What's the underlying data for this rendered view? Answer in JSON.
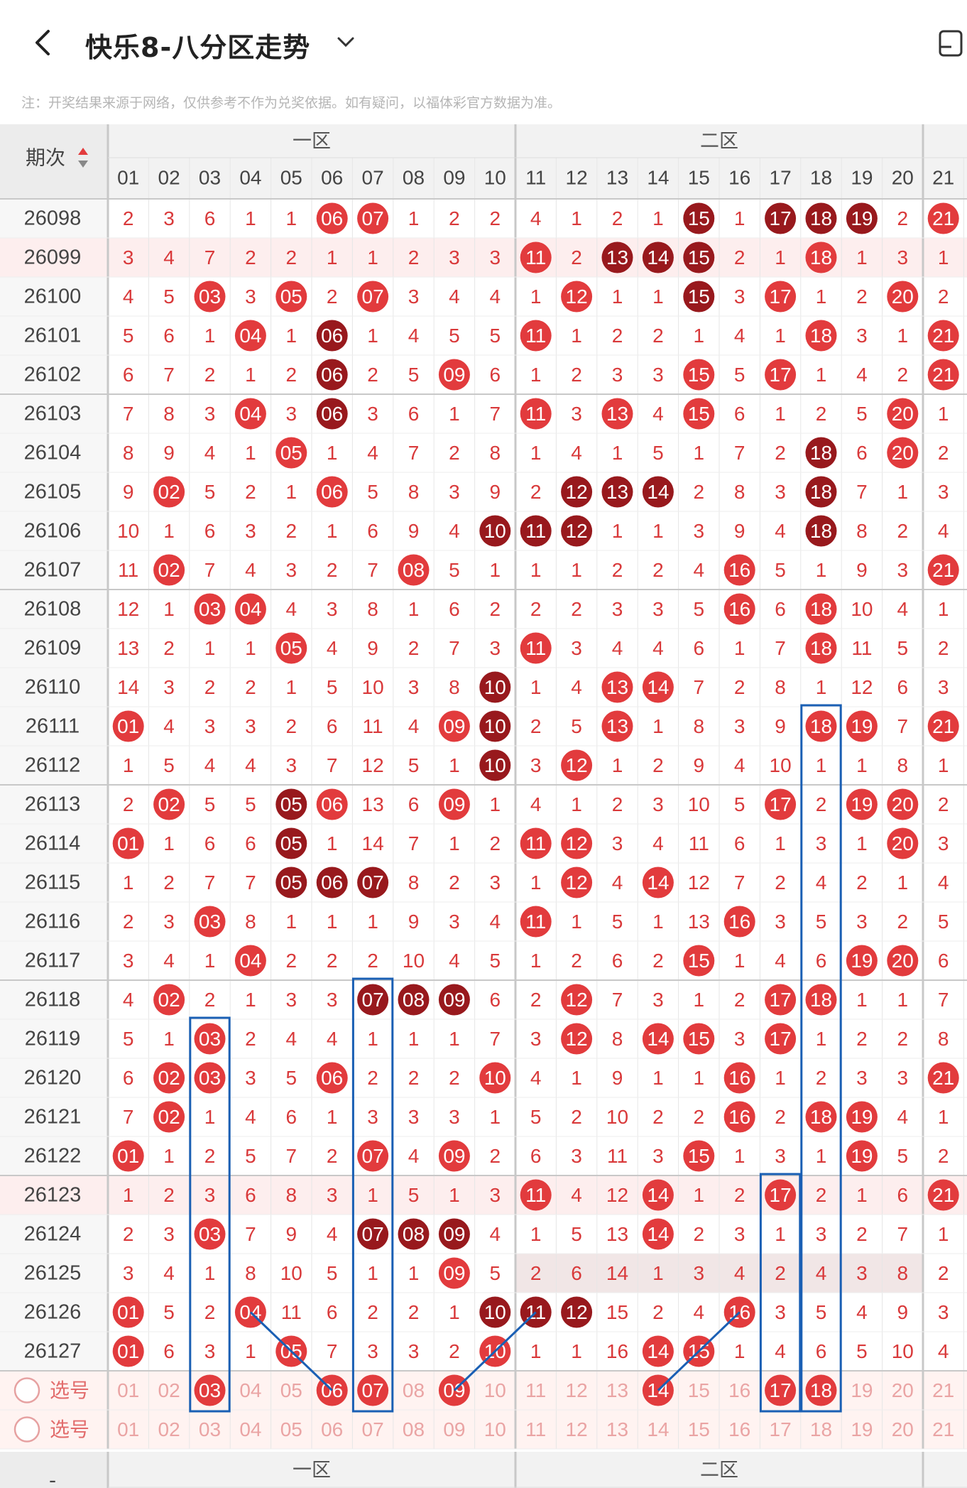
{
  "header": {
    "title": "快乐8-八分区走势",
    "back_icon": "chevron-left-icon",
    "dropdown_icon": "chevron-down-icon",
    "right_icon": "device-icon"
  },
  "note": "注：开奖结果来源于网络，仅供参考不作为兑奖依据。如有疑问，以福体彩官方数据为准。",
  "table": {
    "issue_header": "期次",
    "zones": [
      "一区",
      "二区"
    ],
    "columns": [
      "01",
      "02",
      "03",
      "04",
      "05",
      "06",
      "07",
      "08",
      "09",
      "10",
      "11",
      "12",
      "13",
      "14",
      "15",
      "16",
      "17",
      "18",
      "19",
      "20",
      "21"
    ],
    "pick_label": "选号",
    "colors": {
      "hit": "#e23b3d",
      "repeat": "#98191d",
      "count": "#d9393a",
      "frame": "#1a5fb4",
      "highlight_row": "#fdeeee",
      "pick_row": "#fff3f1"
    },
    "rows": [
      {
        "issue": "26098",
        "cells": [
          "2",
          "3",
          "6",
          "1",
          "1",
          "06*",
          "07*",
          "1",
          "2",
          "2",
          "4",
          "1",
          "2",
          "1",
          "15#",
          "1",
          "17#",
          "18#",
          "19#",
          "2",
          "21*"
        ]
      },
      {
        "issue": "26099",
        "cells": [
          "3",
          "4",
          "7",
          "2",
          "2",
          "1",
          "1",
          "2",
          "3",
          "3",
          "11*",
          "2",
          "13#",
          "14#",
          "15#",
          "2",
          "1",
          "18*",
          "1",
          "3",
          "1"
        ]
      },
      {
        "issue": "26100",
        "cells": [
          "4",
          "5",
          "03*",
          "3",
          "05*",
          "2",
          "07*",
          "3",
          "4",
          "4",
          "1",
          "12*",
          "1",
          "1",
          "15#",
          "3",
          "17*",
          "1",
          "2",
          "20*",
          "2"
        ]
      },
      {
        "issue": "26101",
        "cells": [
          "5",
          "6",
          "1",
          "04*",
          "1",
          "06#",
          "1",
          "4",
          "5",
          "5",
          "11*",
          "1",
          "2",
          "2",
          "1",
          "4",
          "1",
          "18*",
          "3",
          "1",
          "21*"
        ]
      },
      {
        "issue": "26102",
        "cells": [
          "6",
          "7",
          "2",
          "1",
          "2",
          "06#",
          "2",
          "5",
          "09*",
          "6",
          "1",
          "2",
          "3",
          "3",
          "15*",
          "5",
          "17*",
          "1",
          "4",
          "2",
          "21*"
        ]
      },
      {
        "issue": "26103",
        "cells": [
          "7",
          "8",
          "3",
          "04*",
          "3",
          "06#",
          "3",
          "6",
          "1",
          "7",
          "11*",
          "3",
          "13*",
          "4",
          "15*",
          "6",
          "1",
          "2",
          "5",
          "20*",
          "1"
        ]
      },
      {
        "issue": "26104",
        "cells": [
          "8",
          "9",
          "4",
          "1",
          "05*",
          "1",
          "4",
          "7",
          "2",
          "8",
          "1",
          "4",
          "1",
          "5",
          "1",
          "7",
          "2",
          "18#",
          "6",
          "20*",
          "2"
        ]
      },
      {
        "issue": "26105",
        "cells": [
          "9",
          "02*",
          "5",
          "2",
          "1",
          "06*",
          "5",
          "8",
          "3",
          "9",
          "2",
          "12#",
          "13#",
          "14#",
          "2",
          "8",
          "3",
          "18#",
          "7",
          "1",
          "3"
        ]
      },
      {
        "issue": "26106",
        "cells": [
          "10",
          "1",
          "6",
          "3",
          "2",
          "1",
          "6",
          "9",
          "4",
          "10#",
          "11#",
          "12#",
          "1",
          "1",
          "3",
          "9",
          "4",
          "18#",
          "8",
          "2",
          "4"
        ]
      },
      {
        "issue": "26107",
        "cells": [
          "11",
          "02*",
          "7",
          "4",
          "3",
          "2",
          "7",
          "08*",
          "5",
          "1",
          "1",
          "1",
          "2",
          "2",
          "4",
          "16*",
          "5",
          "1",
          "9",
          "3",
          "21*"
        ]
      },
      {
        "issue": "26108",
        "cells": [
          "12",
          "1",
          "03*",
          "04*",
          "4",
          "3",
          "8",
          "1",
          "6",
          "2",
          "2",
          "2",
          "3",
          "3",
          "5",
          "16*",
          "6",
          "18*",
          "10",
          "4",
          "1"
        ]
      },
      {
        "issue": "26109",
        "cells": [
          "13",
          "2",
          "1",
          "1",
          "05*",
          "4",
          "9",
          "2",
          "7",
          "3",
          "11*",
          "3",
          "4",
          "4",
          "6",
          "1",
          "7",
          "18*",
          "11",
          "5",
          "2"
        ]
      },
      {
        "issue": "26110",
        "cells": [
          "14",
          "3",
          "2",
          "2",
          "1",
          "5",
          "10",
          "3",
          "8",
          "10#",
          "1",
          "4",
          "13*",
          "14*",
          "7",
          "2",
          "8",
          "1",
          "12",
          "6",
          "3"
        ]
      },
      {
        "issue": "26111",
        "cells": [
          "01*",
          "4",
          "3",
          "3",
          "2",
          "6",
          "11",
          "4",
          "09*",
          "10#",
          "2",
          "5",
          "13*",
          "1",
          "8",
          "3",
          "9",
          "18*",
          "19*",
          "7",
          "21*"
        ]
      },
      {
        "issue": "26112",
        "cells": [
          "1",
          "5",
          "4",
          "4",
          "3",
          "7",
          "12",
          "5",
          "1",
          "10#",
          "3",
          "12*",
          "1",
          "2",
          "9",
          "4",
          "10",
          "1",
          "1",
          "8",
          "1"
        ]
      },
      {
        "issue": "26113",
        "cells": [
          "2",
          "02*",
          "5",
          "5",
          "05#",
          "06*",
          "13",
          "6",
          "09*",
          "1",
          "4",
          "1",
          "2",
          "3",
          "10",
          "5",
          "17*",
          "2",
          "19*",
          "20*",
          "2"
        ]
      },
      {
        "issue": "26114",
        "cells": [
          "01*",
          "1",
          "6",
          "6",
          "05#",
          "1",
          "14",
          "7",
          "1",
          "2",
          "11*",
          "12*",
          "3",
          "4",
          "11",
          "6",
          "1",
          "3",
          "1",
          "20*",
          "3"
        ]
      },
      {
        "issue": "26115",
        "cells": [
          "1",
          "2",
          "7",
          "7",
          "05#",
          "06#",
          "07#",
          "8",
          "2",
          "3",
          "1",
          "12*",
          "4",
          "14*",
          "12",
          "7",
          "2",
          "4",
          "2",
          "1",
          "4"
        ]
      },
      {
        "issue": "26116",
        "cells": [
          "2",
          "3",
          "03*",
          "8",
          "1",
          "1",
          "1",
          "9",
          "3",
          "4",
          "11*",
          "1",
          "5",
          "1",
          "13",
          "16*",
          "3",
          "5",
          "3",
          "2",
          "5"
        ]
      },
      {
        "issue": "26117",
        "cells": [
          "3",
          "4",
          "1",
          "04*",
          "2",
          "2",
          "2",
          "10",
          "4",
          "5",
          "1",
          "2",
          "6",
          "2",
          "15*",
          "1",
          "4",
          "6",
          "19*",
          "20*",
          "6"
        ]
      },
      {
        "issue": "26118",
        "cells": [
          "4",
          "02*",
          "2",
          "1",
          "3",
          "3",
          "07#",
          "08#",
          "09#",
          "6",
          "2",
          "12*",
          "7",
          "3",
          "1",
          "2",
          "17*",
          "18*",
          "1",
          "1",
          "7"
        ]
      },
      {
        "issue": "26119",
        "cells": [
          "5",
          "1",
          "03*",
          "2",
          "4",
          "4",
          "1",
          "1",
          "1",
          "7",
          "3",
          "12*",
          "8",
          "14*",
          "15*",
          "3",
          "17*",
          "1",
          "2",
          "2",
          "8"
        ]
      },
      {
        "issue": "26120",
        "cells": [
          "6",
          "02*",
          "03*",
          "3",
          "5",
          "06*",
          "2",
          "2",
          "2",
          "10*",
          "4",
          "1",
          "9",
          "1",
          "1",
          "16*",
          "1",
          "2",
          "3",
          "3",
          "21*"
        ]
      },
      {
        "issue": "26121",
        "cells": [
          "7",
          "02*",
          "1",
          "4",
          "6",
          "1",
          "3",
          "3",
          "3",
          "1",
          "5",
          "2",
          "10",
          "2",
          "2",
          "16*",
          "2",
          "18*",
          "19*",
          "4",
          "1"
        ]
      },
      {
        "issue": "26122",
        "cells": [
          "01*",
          "1",
          "2",
          "5",
          "7",
          "2",
          "07*",
          "4",
          "09*",
          "2",
          "6",
          "3",
          "11",
          "3",
          "15*",
          "1",
          "3",
          "1",
          "19*",
          "5",
          "2"
        ]
      },
      {
        "issue": "26123",
        "cells": [
          "1",
          "2",
          "3",
          "6",
          "8",
          "3",
          "1",
          "5",
          "1",
          "3",
          "11*",
          "4",
          "12",
          "14*",
          "1",
          "2",
          "17*",
          "2",
          "1",
          "6",
          "21*"
        ]
      },
      {
        "issue": "26124",
        "cells": [
          "2",
          "3",
          "03*",
          "7",
          "9",
          "4",
          "07#",
          "08#",
          "09#",
          "4",
          "1",
          "5",
          "13",
          "14*",
          "2",
          "3",
          "1",
          "3",
          "2",
          "7",
          "1"
        ]
      },
      {
        "issue": "26125",
        "cells": [
          "3",
          "4",
          "1",
          "8",
          "10",
          "5",
          "1",
          "1",
          "09*",
          "5",
          "2",
          "6",
          "14",
          "1",
          "3",
          "4",
          "2",
          "4",
          "3",
          "8",
          "2"
        ]
      },
      {
        "issue": "26126",
        "cells": [
          "01*",
          "5",
          "2",
          "04*",
          "11",
          "6",
          "2",
          "2",
          "1",
          "10#",
          "11#",
          "12#",
          "15",
          "2",
          "4",
          "16*",
          "3",
          "5",
          "4",
          "9",
          "3"
        ]
      },
      {
        "issue": "26127",
        "cells": [
          "01*",
          "6",
          "3",
          "1",
          "05*",
          "7",
          "3",
          "3",
          "2",
          "10*",
          "1",
          "1",
          "16",
          "14*",
          "15*",
          "1",
          "4",
          "6",
          "5",
          "10",
          "4"
        ]
      }
    ],
    "pick_rows": [
      {
        "label": "选号",
        "selected": [
          "03",
          "06",
          "07",
          "09",
          "14",
          "17",
          "18"
        ]
      },
      {
        "label": "选号",
        "selected": []
      }
    ],
    "footer_qici": "-"
  }
}
